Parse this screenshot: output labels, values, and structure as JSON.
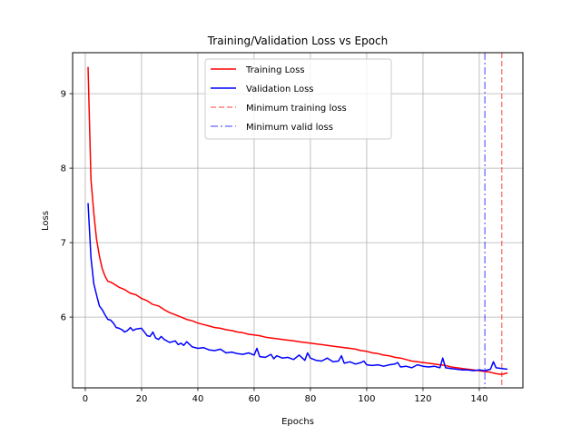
{
  "chart_data": {
    "type": "line",
    "title": "Training/Validation Loss vs Epoch",
    "xlabel": "Epochs",
    "ylabel": "Loss",
    "xlim": [
      -4.5,
      155.5
    ],
    "ylim": [
      5.05,
      9.55
    ],
    "xticks": [
      0,
      20,
      40,
      60,
      80,
      100,
      120,
      140
    ],
    "yticks": [
      6,
      7,
      8,
      9
    ],
    "grid": true,
    "legend_position": "upper center",
    "series": [
      {
        "name": "Training Loss",
        "color": "#ff0000",
        "style": "solid",
        "x": [
          1,
          2,
          3,
          4,
          5,
          6,
          7,
          8,
          9,
          10,
          12,
          14,
          16,
          18,
          20,
          22,
          24,
          26,
          28,
          30,
          32,
          34,
          36,
          38,
          40,
          42,
          44,
          46,
          48,
          50,
          52,
          54,
          56,
          58,
          60,
          62,
          64,
          66,
          68,
          70,
          72,
          74,
          76,
          78,
          80,
          82,
          84,
          86,
          88,
          90,
          92,
          94,
          96,
          98,
          100,
          102,
          104,
          106,
          108,
          110,
          112,
          114,
          116,
          118,
          120,
          122,
          124,
          126,
          128,
          130,
          132,
          134,
          136,
          138,
          140,
          142,
          144,
          146,
          148,
          150
        ],
        "y": [
          9.36,
          7.85,
          7.4,
          7.05,
          6.82,
          6.65,
          6.55,
          6.48,
          6.47,
          6.45,
          6.4,
          6.37,
          6.32,
          6.3,
          6.25,
          6.22,
          6.17,
          6.15,
          6.1,
          6.06,
          6.03,
          6.0,
          5.97,
          5.95,
          5.92,
          5.9,
          5.88,
          5.86,
          5.85,
          5.83,
          5.82,
          5.8,
          5.79,
          5.77,
          5.76,
          5.75,
          5.73,
          5.72,
          5.71,
          5.7,
          5.69,
          5.68,
          5.67,
          5.66,
          5.65,
          5.64,
          5.63,
          5.62,
          5.61,
          5.6,
          5.59,
          5.58,
          5.57,
          5.55,
          5.54,
          5.52,
          5.51,
          5.49,
          5.48,
          5.46,
          5.45,
          5.43,
          5.41,
          5.4,
          5.39,
          5.38,
          5.37,
          5.36,
          5.35,
          5.33,
          5.32,
          5.31,
          5.3,
          5.29,
          5.28,
          5.27,
          5.26,
          5.24,
          5.23,
          5.25
        ]
      },
      {
        "name": "Validation Loss",
        "color": "#0000ff",
        "style": "solid",
        "x": [
          1,
          2,
          3,
          4,
          5,
          6,
          7,
          8,
          9,
          10,
          11,
          12,
          13,
          14,
          15,
          16,
          17,
          18,
          20,
          22,
          23,
          24,
          25,
          26,
          27,
          28,
          30,
          32,
          33,
          34,
          35,
          36,
          38,
          40,
          42,
          44,
          46,
          48,
          50,
          52,
          54,
          56,
          58,
          60,
          61,
          62,
          64,
          66,
          67,
          68,
          70,
          72,
          74,
          76,
          78,
          79,
          80,
          82,
          84,
          86,
          88,
          90,
          91,
          92,
          94,
          96,
          98,
          99,
          100,
          102,
          104,
          106,
          108,
          110,
          111,
          112,
          114,
          116,
          118,
          120,
          122,
          124,
          126,
          127,
          128,
          130,
          132,
          134,
          136,
          138,
          140,
          142,
          144,
          145,
          146,
          148,
          150
        ],
        "y": [
          7.53,
          6.8,
          6.45,
          6.3,
          6.15,
          6.1,
          6.03,
          5.97,
          5.96,
          5.92,
          5.86,
          5.85,
          5.83,
          5.8,
          5.82,
          5.86,
          5.82,
          5.84,
          5.85,
          5.75,
          5.74,
          5.8,
          5.72,
          5.7,
          5.74,
          5.7,
          5.66,
          5.68,
          5.63,
          5.65,
          5.62,
          5.67,
          5.6,
          5.58,
          5.59,
          5.56,
          5.55,
          5.57,
          5.52,
          5.53,
          5.51,
          5.5,
          5.52,
          5.49,
          5.58,
          5.47,
          5.46,
          5.5,
          5.44,
          5.48,
          5.45,
          5.46,
          5.43,
          5.49,
          5.42,
          5.52,
          5.45,
          5.42,
          5.41,
          5.45,
          5.4,
          5.41,
          5.48,
          5.38,
          5.4,
          5.37,
          5.39,
          5.41,
          5.36,
          5.35,
          5.36,
          5.34,
          5.36,
          5.37,
          5.39,
          5.33,
          5.34,
          5.32,
          5.36,
          5.34,
          5.33,
          5.34,
          5.32,
          5.45,
          5.32,
          5.31,
          5.3,
          5.29,
          5.29,
          5.28,
          5.29,
          5.28,
          5.3,
          5.4,
          5.32,
          5.31,
          5.3
        ]
      }
    ],
    "vlines": [
      {
        "name": "Minimum training loss",
        "x": 148,
        "color": "#ff0000",
        "style": "dashed",
        "alpha": 0.5
      },
      {
        "name": "Minimum valid loss",
        "x": 142,
        "color": "#0000ff",
        "style": "dashdot",
        "alpha": 0.5
      }
    ]
  }
}
